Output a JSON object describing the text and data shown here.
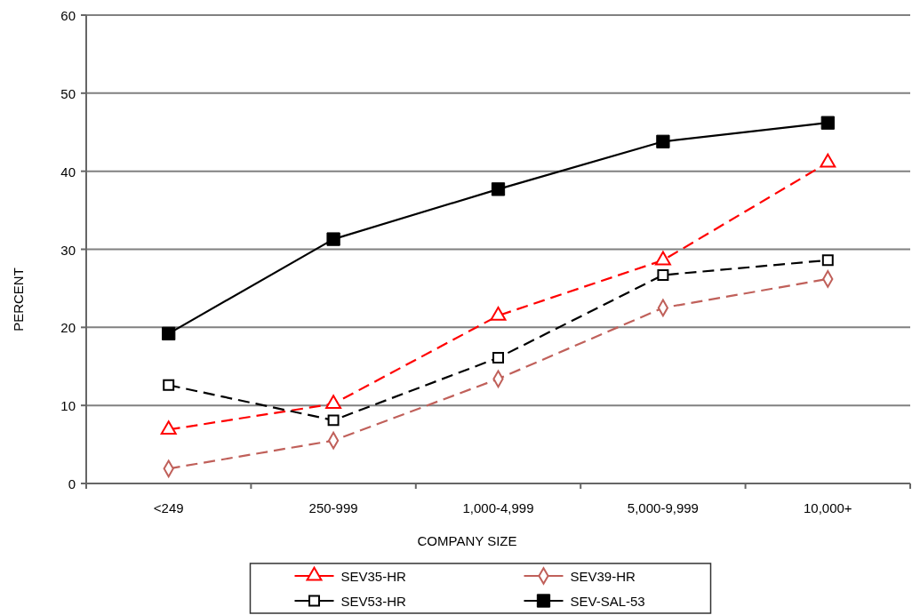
{
  "chart_data": {
    "type": "line",
    "xlabel": "COMPANY SIZE",
    "ylabel": "PERCENT",
    "categories": [
      "<249",
      "250-999",
      "1,000-4,999",
      "5,000-9,999",
      "10,000+"
    ],
    "series": [
      {
        "name": "SEV35-HR",
        "color": "#ff0000",
        "marker": "triangle",
        "line_style": "dashed",
        "values": [
          6.9,
          10.2,
          21.5,
          28.6,
          41.1
        ]
      },
      {
        "name": "SEV39-HR",
        "color": "#c0605a",
        "marker": "diamond",
        "line_style": "dashed",
        "values": [
          1.9,
          5.5,
          13.4,
          22.5,
          26.2
        ]
      },
      {
        "name": "SEV53-HR",
        "color": "#000000",
        "marker": "square",
        "line_style": "dashed",
        "values": [
          12.6,
          8.1,
          16.1,
          26.7,
          28.6
        ]
      },
      {
        "name": "SEV-SAL-53",
        "color": "#000000",
        "marker": "square",
        "line_style": "solid",
        "values": [
          19.2,
          31.3,
          37.7,
          43.8,
          46.2
        ]
      }
    ],
    "ylim": [
      0,
      60
    ],
    "yticks": [
      0,
      10,
      20,
      30,
      40,
      50,
      60
    ],
    "grid": "y",
    "legend": "bottom"
  }
}
